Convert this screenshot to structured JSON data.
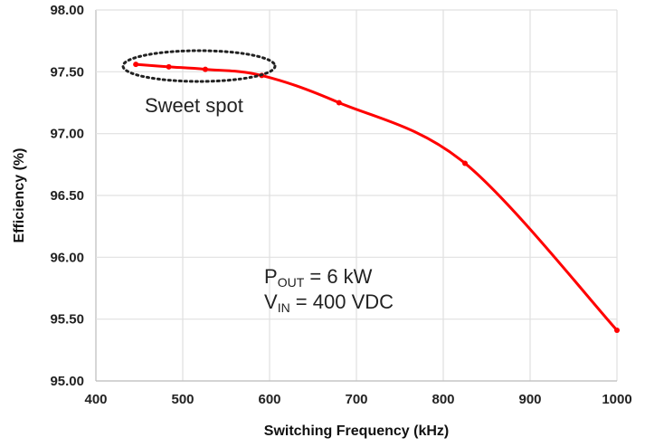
{
  "chart_data": {
    "type": "line",
    "title": "",
    "xlabel": "Switching Frequency (kHz)",
    "ylabel": "Efficiency (%)",
    "xlim": [
      400,
      1000
    ],
    "ylim": [
      95,
      98
    ],
    "xticks": [
      "400",
      "500",
      "600",
      "700",
      "800",
      "900",
      "1000"
    ],
    "yticks": [
      "95.00",
      "95.50",
      "96.00",
      "96.50",
      "97.00",
      "97.50",
      "98.00"
    ],
    "grid": true,
    "series": [
      {
        "color": "#ff0000",
        "x": [
          446,
          484,
          526,
          591,
          680,
          825,
          1000
        ],
        "y": [
          97.56,
          97.54,
          97.52,
          97.47,
          97.25,
          96.76,
          95.41
        ]
      }
    ],
    "annotations": {
      "sweet_spot": "Sweet spot",
      "pout_main": "P",
      "pout_sub": "OUT",
      "pout_val": " = 6 kW",
      "vin_main": "V",
      "vin_sub": "IN",
      "vin_val": " = 400 VDC"
    }
  }
}
